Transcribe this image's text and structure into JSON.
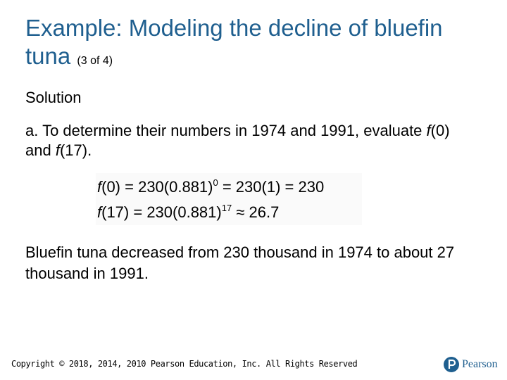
{
  "header": {
    "title": "Example: Modeling the decline of bluefin tuna",
    "subtitle": "(3 of 4)"
  },
  "body": {
    "heading": "Solution",
    "part_a": {
      "text_1": "a. To determine their numbers in 1974 and 1991, evaluate ",
      "func_1": "f",
      "text_2": "(0) and ",
      "func_2": "f",
      "text_3": "(17)."
    },
    "equations": [
      {
        "func": "f",
        "left": "(0) = 230(0.881)",
        "exponent": "0",
        "right": " = 230(1) = 230"
      },
      {
        "func": "f",
        "left": "(17) = 230(0.881)",
        "exponent": "17",
        "right": " ≈ 26.7"
      }
    ],
    "conclusion": "Bluefin tuna decreased from 230 thousand in 1974 to about 27 thousand in 1991."
  },
  "footer": {
    "copyright": "Copyright © 2018, 2014, 2010 Pearson Education, Inc. All Rights Reserved",
    "brand": "Pearson"
  }
}
